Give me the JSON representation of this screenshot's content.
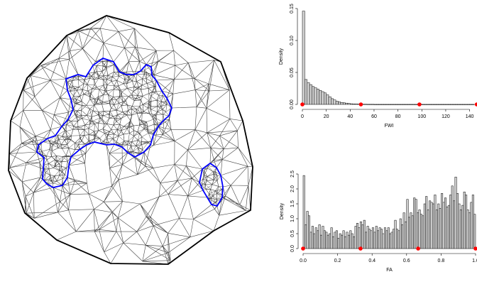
{
  "colors": {
    "background": "#ffffff",
    "mesh": "#444444",
    "boundary": "#000000",
    "inner_boundary": "#0000ff",
    "bar_fill": "#d3d3d3",
    "bar_stroke": "#000000",
    "marker": "#ff0000"
  },
  "chart_data": [
    {
      "type": "diagram",
      "description_free": true,
      "title": "",
      "xlabel": "",
      "ylabel": ""
    },
    {
      "type": "bar",
      "title": "",
      "xlabel": "FWI",
      "ylabel": "Density",
      "xlim": [
        0,
        145
      ],
      "ylim": [
        0,
        0.15
      ],
      "xticks": [
        "0",
        "20",
        "40",
        "60",
        "80",
        "100",
        "120",
        "140"
      ],
      "yticks": [
        "0.00",
        "0.05",
        "0.10",
        "0.15"
      ],
      "bin_width": 2,
      "values": [
        0.146,
        0.039,
        0.034,
        0.031,
        0.028,
        0.026,
        0.024,
        0.022,
        0.02,
        0.018,
        0.015,
        0.012,
        0.009,
        0.007,
        0.005,
        0.004,
        0.003,
        0.0025,
        0.002,
        0.0015,
        0.001,
        0.0008,
        0.0006,
        0.0005,
        0.0004,
        0.0003,
        0.0003,
        0.0002,
        0.0002,
        0.0002,
        0.0001,
        0.0001,
        0.0001,
        0.0001,
        0.0001,
        0.0001,
        0.0001,
        0.0001,
        0.0001,
        0.0001,
        0.0001,
        0.0001,
        0.0001,
        0.0001,
        0.0001,
        0.0001,
        0.0001,
        0.0001,
        0.0001,
        0.0001,
        0.0001,
        0.0001,
        0.0001,
        0.0001,
        0.0001,
        0.0001,
        0.0001,
        0.0001,
        0.0001,
        0.0001,
        0.0001,
        0.0001,
        0.0001,
        0.0001,
        0.0001,
        0.0001,
        0.0001,
        0.0001,
        0.0001,
        0.0001,
        0.0001,
        0.0001
      ],
      "markers": [
        0,
        49,
        98,
        146
      ]
    },
    {
      "type": "bar",
      "title": "",
      "xlabel": "FA",
      "ylabel": "Density",
      "xlim": [
        0,
        1.0
      ],
      "ylim": [
        0,
        2.5
      ],
      "xticks": [
        "0.0",
        "0.2",
        "0.4",
        "0.6",
        "0.8",
        "1.0"
      ],
      "yticks": [
        "0.0",
        "0.5",
        "1.0",
        "1.5",
        "2.0",
        "2.5"
      ],
      "bin_width": 0.01,
      "values": [
        2.45,
        0.8,
        1.25,
        1.1,
        0.55,
        0.75,
        0.5,
        0.7,
        0.6,
        0.8,
        0.45,
        0.75,
        0.6,
        0.55,
        0.45,
        0.5,
        0.7,
        0.4,
        0.55,
        0.6,
        0.35,
        0.5,
        0.45,
        0.6,
        0.4,
        0.55,
        0.45,
        0.6,
        0.5,
        0.4,
        0.75,
        0.85,
        0.7,
        0.9,
        0.8,
        0.95,
        0.55,
        0.75,
        0.65,
        0.6,
        0.7,
        0.55,
        0.75,
        0.6,
        0.7,
        0.65,
        0.5,
        0.7,
        0.6,
        0.7,
        0.5,
        0.55,
        0.65,
        0.95,
        0.65,
        0.6,
        1.0,
        0.8,
        1.2,
        0.9,
        1.65,
        1.05,
        1.2,
        1.1,
        1.7,
        1.65,
        1.2,
        1.3,
        1.15,
        1.1,
        1.5,
        1.75,
        1.3,
        1.6,
        1.55,
        1.5,
        1.8,
        1.3,
        1.5,
        1.35,
        1.85,
        1.55,
        1.7,
        1.4,
        1.45,
        1.8,
        2.1,
        1.6,
        2.4,
        1.85,
        1.5,
        1.3,
        1.45,
        1.9,
        1.8,
        1.3,
        1.2,
        1.55,
        1.8,
        1.15
      ],
      "markers": [
        0,
        0.333,
        0.667,
        1.0
      ]
    }
  ]
}
